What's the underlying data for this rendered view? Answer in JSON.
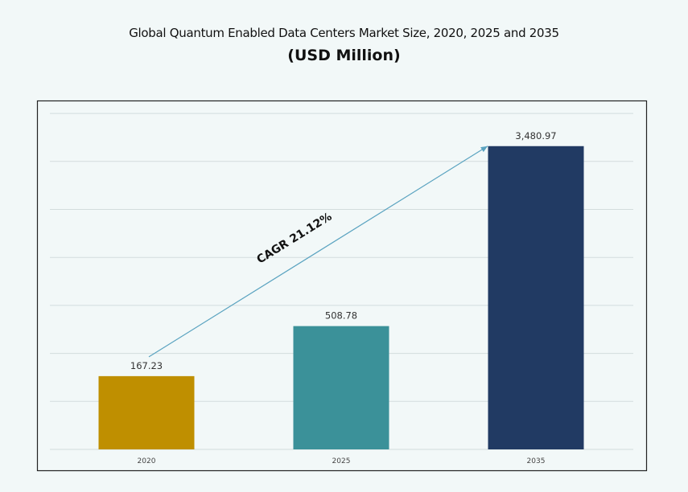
{
  "chart_data": {
    "type": "bar",
    "title": "Global Quantum Enabled Data Centers Market Size, 2020, 2025 and 2035",
    "subtitle": "(USD Million)",
    "categories": [
      "2020",
      "2025",
      "2035"
    ],
    "values": [
      167.23,
      508.78,
      3480.97
    ],
    "data_labels": [
      "167.23",
      "508.78",
      "3,480.97"
    ],
    "colors": [
      "#bf8f00",
      "#3b9199",
      "#213a63"
    ],
    "xlabel": "",
    "ylabel": "",
    "y_axis_labels_shown": false,
    "grid": true,
    "annotation": {
      "text": "CAGR 21.12%",
      "arrow_from": "2020",
      "arrow_to": "2035",
      "color": "#5aa3c0"
    }
  }
}
